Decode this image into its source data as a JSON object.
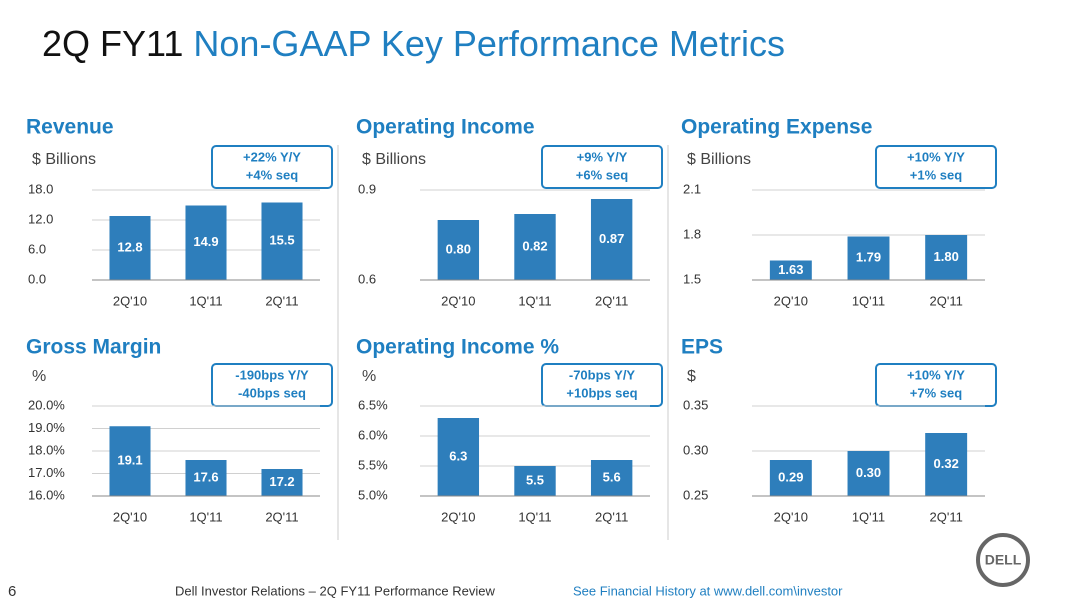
{
  "slide": {
    "title_prefix": "2Q FY11",
    "title": "Non-GAAP Key Performance Metrics",
    "page_number": "6",
    "footer": "Dell Investor Relations – 2Q FY11 Performance Review",
    "footer_link": "See Financial History at www.dell.com\\investor",
    "logo": "DELL"
  },
  "chart_data": [
    {
      "type": "bar",
      "title": "Revenue",
      "unit_label": "$ Billions",
      "annotation": [
        "+22% Y/Y",
        "+4% seq"
      ],
      "categories": [
        "2Q'10",
        "1Q'11",
        "2Q'11"
      ],
      "values": [
        12.8,
        14.9,
        15.5
      ],
      "color": "#2e7ebb",
      "ylim": [
        0,
        18
      ],
      "yticks": [
        {
          "value": 0,
          "label": "0.0"
        },
        {
          "value": 6,
          "label": "6.0"
        },
        {
          "value": 12,
          "label": "12.0"
        },
        {
          "value": 18,
          "label": "18.0"
        }
      ],
      "grid": true
    },
    {
      "type": "bar",
      "title": "Operating Income",
      "unit_label": "$ Billions",
      "annotation": [
        "+9% Y/Y",
        "+6% seq"
      ],
      "categories": [
        "2Q'10",
        "1Q'11",
        "2Q'11"
      ],
      "values": [
        0.8,
        0.82,
        0.87
      ],
      "value_labels": [
        "0.80",
        "0.82",
        "0.87"
      ],
      "color": "#2e7ebb",
      "ylim": [
        0.6,
        0.9
      ],
      "yticks": [
        0.6,
        0.9
      ],
      "grid": true
    },
    {
      "type": "bar",
      "title": "Operating Expense",
      "unit_label": "$ Billions",
      "annotation": [
        "+10% Y/Y",
        "+1% seq"
      ],
      "categories": [
        "2Q'10",
        "1Q'11",
        "2Q'11"
      ],
      "values": [
        1.63,
        1.79,
        1.8
      ],
      "value_labels": [
        "1.63",
        "1.79",
        "1.80"
      ],
      "color": "#2e7ebb",
      "ylim": [
        1.5,
        2.1
      ],
      "yticks": [
        1.5,
        1.8,
        2.1
      ],
      "grid": true
    },
    {
      "type": "bar",
      "title": "Gross Margin",
      "unit_label": "%",
      "annotation": [
        "-190bps Y/Y",
        "-40bps seq"
      ],
      "categories": [
        "2Q'10",
        "1Q'11",
        "2Q'11"
      ],
      "values": [
        19.1,
        17.6,
        17.2
      ],
      "color": "#2e7ebb",
      "ylim": [
        16,
        20
      ],
      "yticks": [
        {
          "value": 16,
          "label": "16.0%"
        },
        {
          "value": 17,
          "label": "17.0%"
        },
        {
          "value": 18,
          "label": "18.0%"
        },
        {
          "value": 19,
          "label": "19.0%"
        },
        {
          "value": 20,
          "label": "20.0%"
        }
      ],
      "grid": true
    },
    {
      "type": "bar",
      "title": "Operating Income %",
      "unit_label": "%",
      "annotation": [
        "-70bps Y/Y",
        "+10bps seq"
      ],
      "categories": [
        "2Q'10",
        "1Q'11",
        "2Q'11"
      ],
      "values": [
        6.3,
        5.5,
        5.6
      ],
      "color": "#2e7ebb",
      "ylim": [
        5,
        6.5
      ],
      "yticks": [
        {
          "value": 5,
          "label": "5.0%"
        },
        {
          "value": 5.5,
          "label": "5.5%"
        },
        {
          "value": 6,
          "label": "6.0%"
        },
        {
          "value": 6.5,
          "label": "6.5%"
        }
      ],
      "grid": true
    },
    {
      "type": "bar",
      "title": "EPS",
      "unit_label": "$",
      "annotation": [
        "+10% Y/Y",
        "+7% seq"
      ],
      "categories": [
        "2Q'10",
        "1Q'11",
        "2Q'11"
      ],
      "values": [
        0.29,
        0.3,
        0.32
      ],
      "value_labels": [
        "0.29",
        "0.30",
        "0.32"
      ],
      "color": "#2e7ebb",
      "ylim": [
        0.25,
        0.35
      ],
      "yticks": [
        0.25,
        {
          "value": 0.3,
          "label": "0.30"
        },
        0.35
      ],
      "grid": true
    }
  ]
}
